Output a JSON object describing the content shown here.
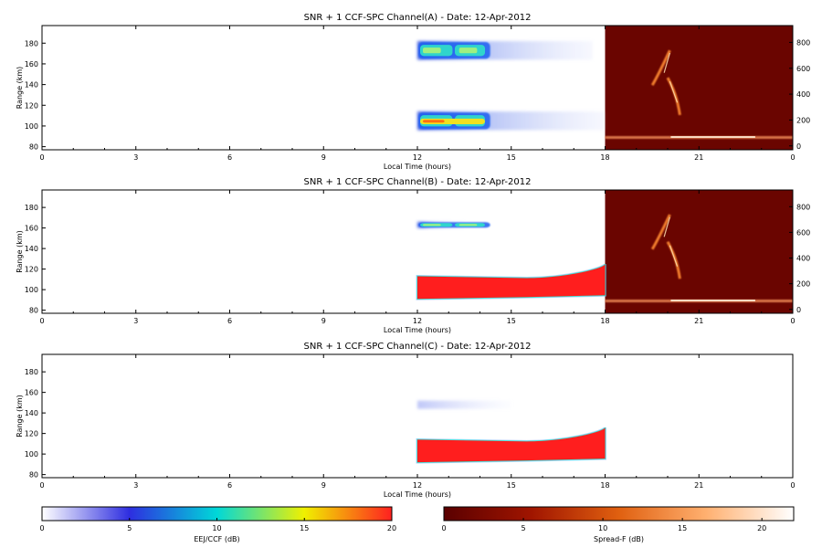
{
  "chart_data": [
    {
      "type": "heatmap",
      "title": "SNR + 1 CCF-SPC Channel(A) - Date: 12-Apr-2012",
      "xlabel": "Local Time (hours)",
      "ylabel": "Range (km)",
      "xlim": [
        0,
        24
      ],
      "ylim": [
        77,
        197
      ],
      "xticks": [
        "0",
        "3",
        "6",
        "9",
        "12",
        "15",
        "18",
        "21",
        "0"
      ],
      "yticks": [
        80,
        100,
        120,
        140,
        160,
        180
      ],
      "right_ylim": [
        -30,
        930
      ],
      "right_yticks": [
        0,
        200,
        400,
        600,
        800
      ],
      "echoes": [
        {
          "name": "upper",
          "t_start": 12.0,
          "t_end": 17.6,
          "range_center": 173,
          "range_width": 18,
          "peak_db": 8
        },
        {
          "name": "lower",
          "t_start": 12.0,
          "t_end": 18.0,
          "range_center": 105,
          "range_width": 18,
          "peak_db": 15
        }
      ],
      "spread_f": {
        "t_start": 18.0,
        "t_end": 24.0,
        "plume_start_hour": 19.3,
        "plume_end_hour": 20.7,
        "trace_height_km": 90
      }
    },
    {
      "type": "heatmap",
      "title": "SNR + 1 CCF-SPC Channel(B) - Date: 12-Apr-2012",
      "xlabel": "Local Time (hours)",
      "ylabel": "Range (km)",
      "xlim": [
        0,
        24
      ],
      "ylim": [
        77,
        197
      ],
      "xticks": [
        "0",
        "3",
        "6",
        "9",
        "12",
        "15",
        "18",
        "21",
        "0"
      ],
      "yticks": [
        80,
        100,
        120,
        140,
        160,
        180
      ],
      "right_ylim": [
        -30,
        930
      ],
      "right_yticks": [
        0,
        200,
        400,
        600,
        800
      ],
      "echoes": [
        {
          "name": "upper",
          "t_start": 12.0,
          "t_end": 13.5,
          "range_center": 163,
          "range_width": 6,
          "peak_db": 6
        },
        {
          "name": "lower",
          "t_start": 12.0,
          "t_end": 18.0,
          "range_center": 102,
          "range_width": 22,
          "peak_db": 20
        }
      ],
      "spread_f": {
        "t_start": 18.0,
        "t_end": 24.0,
        "plume_start_hour": 19.3,
        "plume_end_hour": 20.7,
        "trace_height_km": 90
      }
    },
    {
      "type": "heatmap",
      "title": "SNR + 1 CCF-SPC Channel(C) - Date: 12-Apr-2012",
      "xlabel": "Local Time (hours)",
      "ylabel": "Range (km)",
      "xlim": [
        0,
        24
      ],
      "ylim": [
        77,
        197
      ],
      "xticks": [
        "0",
        "3",
        "6",
        "9",
        "12",
        "15",
        "18",
        "21",
        "0"
      ],
      "yticks": [
        80,
        100,
        120,
        140,
        160,
        180
      ],
      "echoes": [
        {
          "name": "upper",
          "t_start": 12.0,
          "t_end": 15.0,
          "range_center": 148,
          "range_width": 8,
          "peak_db": 3
        },
        {
          "name": "lower",
          "t_start": 12.0,
          "t_end": 18.0,
          "range_center": 103,
          "range_width": 22,
          "peak_db": 20
        }
      ]
    }
  ],
  "colorbars": [
    {
      "label": "EEJ/CCF (dB)",
      "range": [
        0,
        20
      ],
      "ticks": [
        "0",
        "5",
        "10",
        "15",
        "20"
      ],
      "colors": [
        "#ffffff",
        "#2e2ee0",
        "#00d8d8",
        "#f0f000",
        "#ff2020"
      ]
    },
    {
      "label": "Spread-F (dB)",
      "range": [
        0,
        22
      ],
      "ticks": [
        "0",
        "5",
        "10",
        "15",
        "20"
      ],
      "colors": [
        "#5a0000",
        "#a01500",
        "#e06010",
        "#ffb070",
        "#ffffff"
      ]
    }
  ]
}
